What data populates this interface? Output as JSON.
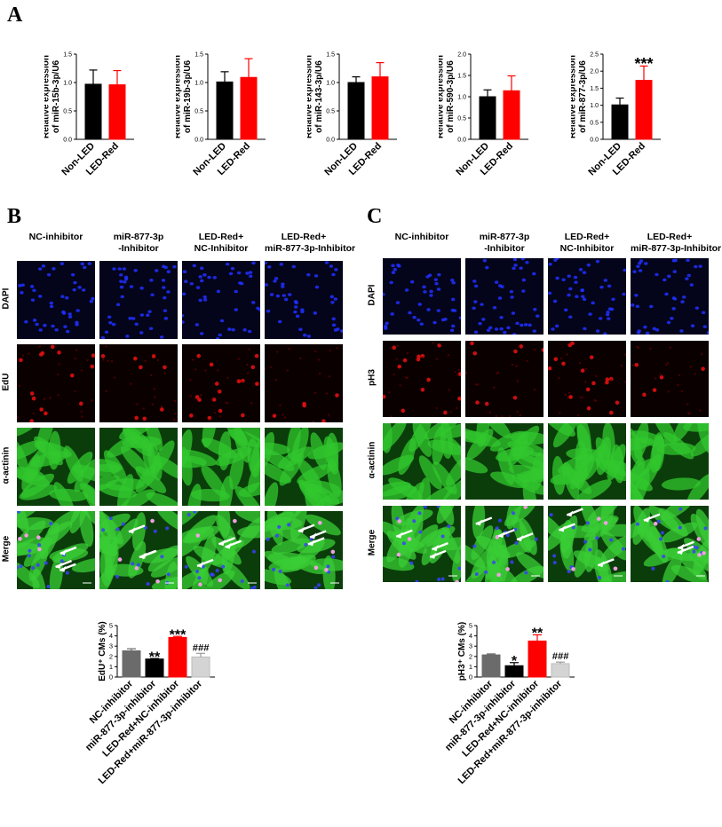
{
  "panels": {
    "A": "A",
    "B": "B",
    "C": "C"
  },
  "colors": {
    "non_led": "#000000",
    "led_red": "#ff0000",
    "nc_inhibitor": "#6b6b6b",
    "mir_inhibitor": "#000000",
    "led_nc": "#ff0000",
    "led_mir": "#d4d4d4"
  },
  "chart_data": [
    {
      "type": "bar",
      "categories": [
        "Non-LED",
        "LED-Red"
      ],
      "values": [
        0.97,
        0.96
      ],
      "errors": [
        0.25,
        0.25
      ],
      "ylabel": "Relative expression of miR-15b-3p/U6",
      "ylim": [
        0,
        1.5
      ],
      "yticks": [
        "0.0",
        "0.5",
        "1.0",
        "1.5"
      ],
      "annotations": [
        "",
        ""
      ]
    },
    {
      "type": "bar",
      "categories": [
        "Non-LED",
        "LED-Red"
      ],
      "values": [
        1.01,
        1.09
      ],
      "errors": [
        0.18,
        0.33
      ],
      "ylabel": "Relative expression of miR-19b-3p/U6",
      "ylim": [
        0,
        1.5
      ],
      "yticks": [
        "0.0",
        "0.5",
        "1.0",
        "1.5"
      ],
      "annotations": [
        "",
        ""
      ]
    },
    {
      "type": "bar",
      "categories": [
        "Non-LED",
        "LED-Red"
      ],
      "values": [
        1.0,
        1.1
      ],
      "errors": [
        0.1,
        0.25
      ],
      "ylabel": "Relative expression of miR-143-3p/U6",
      "ylim": [
        0,
        1.5
      ],
      "yticks": [
        "0.0",
        "0.5",
        "1.0",
        "1.5"
      ],
      "annotations": [
        "",
        ""
      ]
    },
    {
      "type": "bar",
      "categories": [
        "Non-LED",
        "LED-Red"
      ],
      "values": [
        1.0,
        1.14
      ],
      "errors": [
        0.16,
        0.35
      ],
      "ylabel": "Relative expression of miR-590-3p/U6",
      "ylim": [
        0,
        2.0
      ],
      "yticks": [
        "0.0",
        "0.5",
        "1.0",
        "1.5",
        "2.0"
      ],
      "annotations": [
        "",
        ""
      ]
    },
    {
      "type": "bar",
      "categories": [
        "Non-LED",
        "LED-Red"
      ],
      "values": [
        1.01,
        1.73
      ],
      "errors": [
        0.2,
        0.42
      ],
      "ylabel": "Relative expression of miR-877-3p/U6",
      "ylim": [
        0,
        2.5
      ],
      "yticks": [
        "0.0",
        "0.5",
        "1.0",
        "1.5",
        "2.0",
        "2.5"
      ],
      "annotations": [
        "",
        "***"
      ]
    },
    {
      "type": "bar",
      "categories": [
        "NC-inhibitor",
        "miR-877-3p-inhibitor",
        "LED-Red+NC-inhibitor",
        "LED-Red+miR-877-3p-inhibitor"
      ],
      "values": [
        2.55,
        1.75,
        3.85,
        1.95
      ],
      "errors": [
        0.2,
        0.05,
        0.1,
        0.35
      ],
      "ylabel": "EdU⁺ CMs (%)",
      "ylim": [
        0,
        5
      ],
      "yticks": [
        "0",
        "1",
        "2",
        "3",
        "4",
        "5"
      ],
      "annotations": [
        "",
        "**",
        "***",
        "###"
      ]
    },
    {
      "type": "bar",
      "categories": [
        "NC-inhibitor",
        "miR-877-3p-inhibitor",
        "LED-Red+NC-inhibitor",
        "LED-Red+miR-877-3p-inhibitor"
      ],
      "values": [
        2.15,
        1.1,
        3.5,
        1.3
      ],
      "errors": [
        0.1,
        0.3,
        0.6,
        0.15
      ],
      "ylabel": "pH3⁺ CMs (%)",
      "ylim": [
        0,
        5
      ],
      "yticks": [
        "0",
        "1",
        "2",
        "3",
        "4",
        "5"
      ],
      "annotations": [
        "",
        "*",
        "**",
        "###"
      ]
    }
  ],
  "panel_b": {
    "columns": [
      "NC-inhibitor",
      "miR-877-3p\n-Inhibitor",
      "LED-Red+\nNC-Inhibitor",
      "LED-Red+\nmiR-877-3p-Inhibitor"
    ],
    "rows": [
      "DAPI",
      "EdU",
      "α-actinin",
      "Merge"
    ]
  },
  "panel_c": {
    "columns": [
      "NC-inhibitor",
      "miR-877-3p\n-Inhibitor",
      "LED-Red+\nNC-Inhibitor",
      "LED-Red+\nmiR-877-3p-Inhibitor"
    ],
    "rows": [
      "DAPI",
      "pH3",
      "α-actinin",
      "Merge"
    ]
  }
}
